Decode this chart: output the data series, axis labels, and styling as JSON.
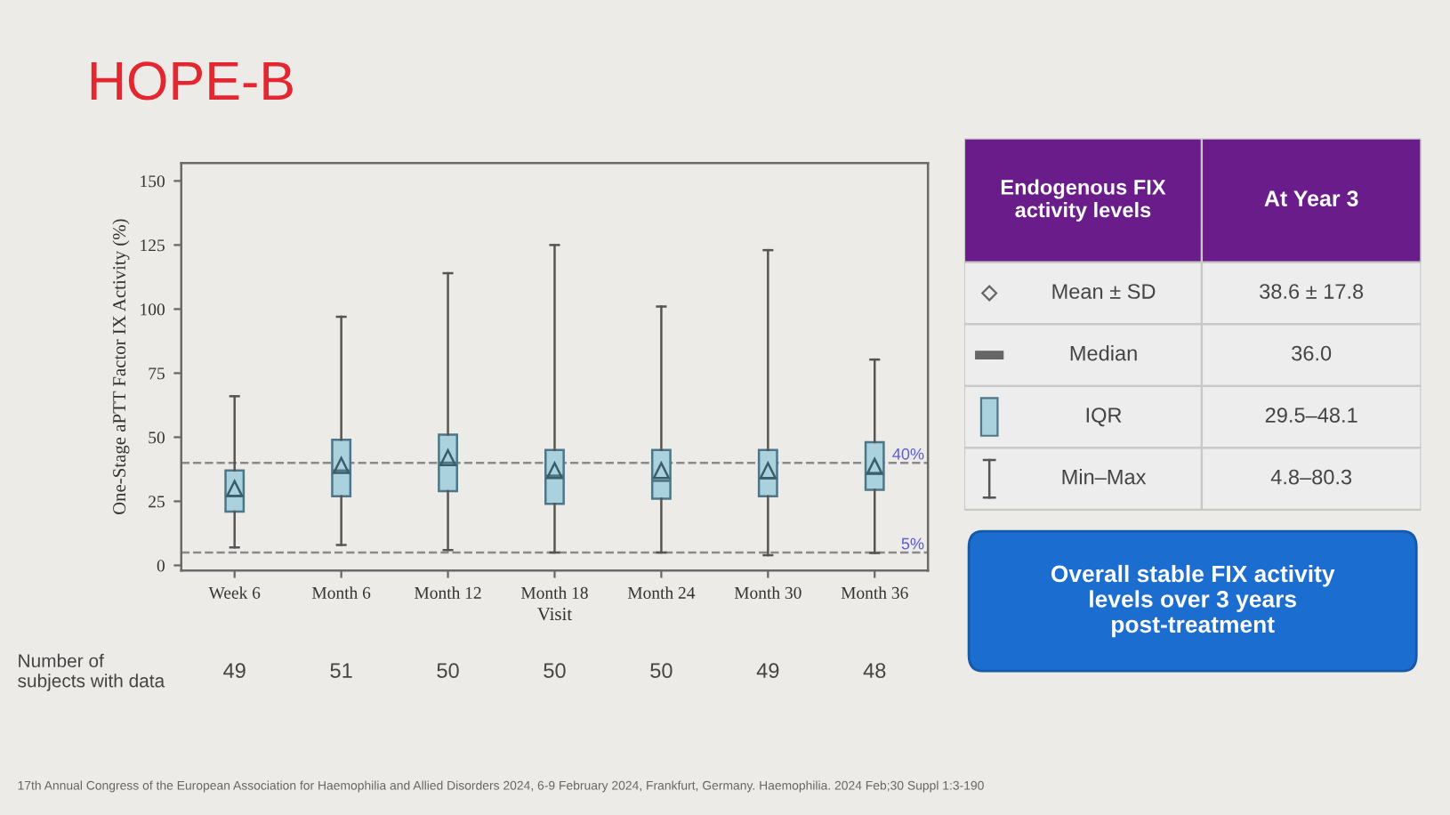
{
  "chart_data": [
    {
      "type": "box",
      "title": "HOPE-B",
      "ylabel": "One-Stage aPTT Factor IX Activity (%)",
      "xlabel": "Visit",
      "categories": [
        "Week 6",
        "Month 6",
        "Month 12",
        "Month 18",
        "Month 24",
        "Month 30",
        "Month 36"
      ],
      "color": "#a9d2de",
      "marker": "triangle",
      "boxes": [
        {
          "low": 7,
          "q1": 21,
          "median": 27,
          "q3": 37,
          "high": 66,
          "mean": 30
        },
        {
          "low": 8,
          "q1": 27,
          "median": 37,
          "q3": 49,
          "high": 97,
          "mean": 39
        },
        {
          "low": 6,
          "q1": 29,
          "median": 40,
          "q3": 51,
          "high": 114,
          "mean": 42
        },
        {
          "low": 5,
          "q1": 24,
          "median": 35,
          "q3": 45,
          "high": 125,
          "mean": 37
        },
        {
          "low": 5,
          "q1": 26,
          "median": 33,
          "q3": 45,
          "high": 101,
          "mean": 37
        },
        {
          "low": 4,
          "q1": 27,
          "median": 34,
          "q3": 45,
          "high": 123,
          "mean": 37
        },
        {
          "low": 4.8,
          "q1": 29.5,
          "median": 36.0,
          "q3": 48.1,
          "high": 80.3,
          "mean": 38.6
        }
      ],
      "ylim": [
        -2,
        157
      ],
      "yticks": [
        0,
        25,
        50,
        75,
        100,
        125,
        150
      ],
      "ref_lines": [
        {
          "axis": "y",
          "value": 40,
          "label": "40%",
          "color": "#8a8a8a",
          "line_style": "dashed"
        },
        {
          "axis": "y",
          "value": 5,
          "label": "5%",
          "color": "#8a8a8a",
          "line_style": "dashed"
        }
      ],
      "annotations": [
        "Number of subjects with data",
        "49",
        "51",
        "50",
        "50",
        "50",
        "49",
        "48",
        "17th Annual Congress of the European Association for Haemophilia and Allied Disorders 2024, 6-9 February 2024, Frankfurt, Germany. Haemophilia. 2024 Feb;30 Suppl 1:3-190"
      ]
    },
    {
      "type": "other",
      "annotations": [
        "Endogenous FIX activity levels",
        "At Year 3",
        "Mean ± SD",
        "38.6 ± 17.8",
        "Median",
        "36.0",
        "IQR",
        "29.5–48.1",
        "Min–Max",
        "4.8–80.3",
        "Overall stable FIX activity levels over 3 years post-treatment"
      ]
    }
  ]
}
